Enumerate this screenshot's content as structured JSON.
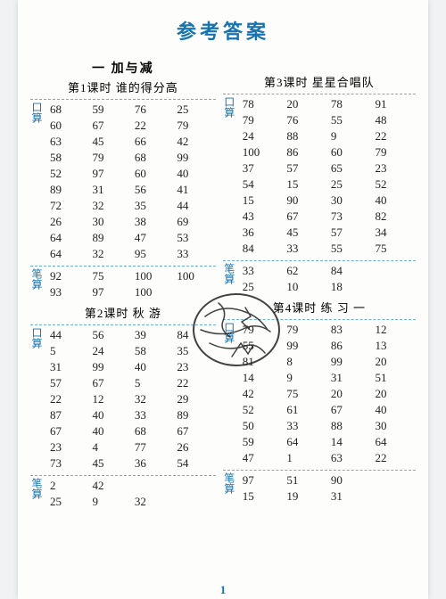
{
  "title": "参考答案",
  "page_number": "1",
  "unit_title": "一 加与减",
  "lessons": {
    "l1": {
      "title": "第1课时 谁的得分高",
      "kousuan_label": "口算",
      "bisuan_label": "笔算",
      "kousuan": [
        [
          "68",
          "59",
          "76",
          "25"
        ],
        [
          "60",
          "67",
          "22",
          "79"
        ],
        [
          "63",
          "45",
          "66",
          "42"
        ],
        [
          "58",
          "79",
          "68",
          "99"
        ],
        [
          "52",
          "97",
          "60",
          "40"
        ],
        [
          "89",
          "31",
          "56",
          "41"
        ],
        [
          "72",
          "32",
          "35",
          "44"
        ],
        [
          "26",
          "30",
          "38",
          "69"
        ],
        [
          "64",
          "89",
          "47",
          "53"
        ],
        [
          "64",
          "32",
          "95",
          "33"
        ]
      ],
      "bisuan": [
        [
          "92",
          "75",
          "100",
          "100"
        ],
        [
          "93",
          "97",
          "100",
          ""
        ]
      ]
    },
    "l2": {
      "title": "第2课时 秋 游",
      "kousuan_label": "口算",
      "bisuan_label": "笔算",
      "kousuan": [
        [
          "44",
          "56",
          "39",
          "84"
        ],
        [
          "5",
          "24",
          "58",
          "35"
        ],
        [
          "31",
          "99",
          "40",
          "23"
        ],
        [
          "57",
          "67",
          "5",
          "22"
        ],
        [
          "22",
          "12",
          "32",
          "29"
        ],
        [
          "87",
          "40",
          "33",
          "89"
        ],
        [
          "67",
          "40",
          "68",
          "67"
        ],
        [
          "23",
          "4",
          "77",
          "26"
        ],
        [
          "73",
          "45",
          "36",
          "54"
        ]
      ],
      "bisuan": [
        [
          "2",
          "42",
          "",
          ""
        ],
        [
          "25",
          "9",
          "32",
          ""
        ]
      ]
    },
    "l3": {
      "title": "第3课时 星星合唱队",
      "kousuan_label": "口算",
      "bisuan_label": "笔算",
      "kousuan": [
        [
          "78",
          "20",
          "78",
          "91"
        ],
        [
          "79",
          "76",
          "55",
          "48"
        ],
        [
          "24",
          "88",
          "9",
          "22"
        ],
        [
          "100",
          "86",
          "60",
          "79"
        ],
        [
          "37",
          "57",
          "65",
          "23"
        ],
        [
          "54",
          "15",
          "25",
          "52"
        ],
        [
          "15",
          "90",
          "30",
          "40"
        ],
        [
          "43",
          "67",
          "73",
          "82"
        ],
        [
          "36",
          "45",
          "57",
          "34"
        ],
        [
          "84",
          "33",
          "55",
          "75"
        ]
      ],
      "bisuan": [
        [
          "33",
          "62",
          "84",
          ""
        ],
        [
          "25",
          "10",
          "18",
          ""
        ]
      ]
    },
    "l4": {
      "title": "第4课时 练 习 一",
      "kousuan_label": "口算",
      "bisuan_label": "笔算",
      "kousuan": [
        [
          "79",
          "79",
          "83",
          "12"
        ],
        [
          "55",
          "99",
          "86",
          "13"
        ],
        [
          "81",
          "8",
          "99",
          "20"
        ],
        [
          "14",
          "9",
          "31",
          "51"
        ],
        [
          "42",
          "75",
          "20",
          "20"
        ],
        [
          "52",
          "61",
          "67",
          "40"
        ],
        [
          "50",
          "33",
          "88",
          "30"
        ],
        [
          "59",
          "64",
          "14",
          "64"
        ],
        [
          "47",
          "1",
          "63",
          "22"
        ]
      ],
      "bisuan": [
        [
          "97",
          "51",
          "90",
          ""
        ],
        [
          "15",
          "19",
          "31",
          ""
        ]
      ]
    }
  }
}
